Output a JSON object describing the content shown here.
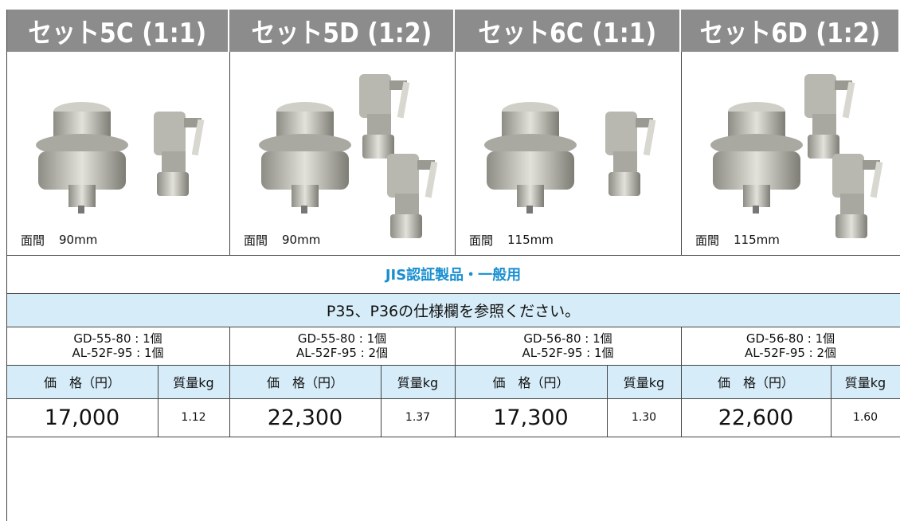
{
  "header": {
    "columns": [
      "セット5C (1:1)",
      "セット5D (1:2)",
      "セット6C (1:1)",
      "セット6D (1:2)"
    ]
  },
  "images": [
    {
      "caption_label": "面間",
      "caption_value": "90mm"
    },
    {
      "caption_label": "面間",
      "caption_value": "90mm"
    },
    {
      "caption_label": "面間",
      "caption_value": "115mm"
    },
    {
      "caption_label": "面間",
      "caption_value": "115mm"
    }
  ],
  "category": "JIS認証製品・一般用",
  "spec_note": "P35、P36の仕様欄を参照ください。",
  "price_header": "価　格（円）",
  "weight_header": "質量kg",
  "sets": [
    {
      "components": [
        "GD-55-80 : 1個",
        "AL-52F-95 : 1個"
      ],
      "price": "17,000",
      "weight": "1.12"
    },
    {
      "components": [
        "GD-55-80 : 1個",
        "AL-52F-95 : 2個"
      ],
      "price": "22,300",
      "weight": "1.37"
    },
    {
      "components": [
        "GD-56-80 : 1個",
        "AL-52F-95 : 1個"
      ],
      "price": "17,300",
      "weight": "1.30"
    },
    {
      "components": [
        "GD-56-80 : 1個",
        "AL-52F-95 : 2個"
      ],
      "price": "22,600",
      "weight": "1.60"
    }
  ]
}
